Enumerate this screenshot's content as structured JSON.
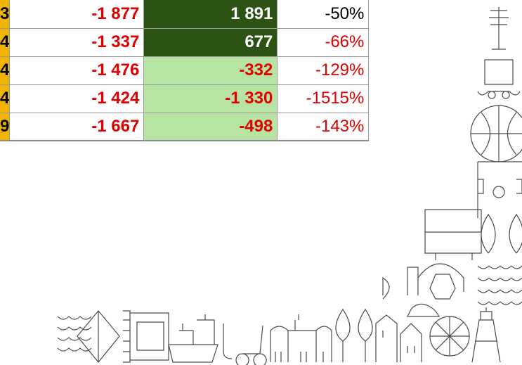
{
  "table": {
    "rows": [
      [
        "3",
        "-1 877",
        "1 891",
        "-50%"
      ],
      [
        "4",
        "-1 337",
        "677",
        "-66%"
      ],
      [
        "4",
        "-1 476",
        "-332",
        "-129%"
      ],
      [
        "4",
        "-1 424",
        "-1 330",
        "-1515%"
      ],
      [
        "9",
        "-1 667",
        "-498",
        "-143%"
      ]
    ]
  }
}
